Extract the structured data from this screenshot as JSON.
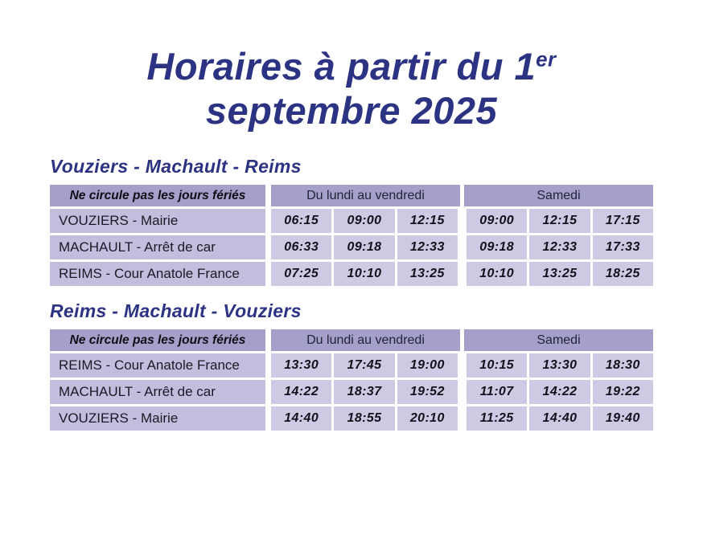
{
  "colors": {
    "accent": "#2c3383",
    "header-bg": "#a5a0ca",
    "station-bg": "#c2bedd",
    "time-bg": "#cdcae4"
  },
  "title": {
    "line1": "Horaires à partir du 1",
    "sup": "er",
    "line2": "septembre 2025"
  },
  "tables": [
    {
      "section_title": "Vouziers - Machault - Reims",
      "header": {
        "note": "Ne circule pas les jours fériés",
        "weekdays": "Du lundi au vendredi",
        "saturday": "Samedi"
      },
      "rows": [
        {
          "station": "VOUZIERS - Mairie",
          "times": [
            "06:15",
            "09:00",
            "12:15",
            "09:00",
            "12:15",
            "17:15"
          ]
        },
        {
          "station": "MACHAULT - Arrêt de car",
          "times": [
            "06:33",
            "09:18",
            "12:33",
            "09:18",
            "12:33",
            "17:33"
          ]
        },
        {
          "station": "REIMS - Cour Anatole France",
          "times": [
            "07:25",
            "10:10",
            "13:25",
            "10:10",
            "13:25",
            "18:25"
          ]
        }
      ]
    },
    {
      "section_title": "Reims - Machault - Vouziers",
      "header": {
        "note": "Ne circule pas les jours fériés",
        "weekdays": "Du lundi au vendredi",
        "saturday": "Samedi"
      },
      "rows": [
        {
          "station": "REIMS - Cour Anatole France",
          "times": [
            "13:30",
            "17:45",
            "19:00",
            "10:15",
            "13:30",
            "18:30"
          ]
        },
        {
          "station": "MACHAULT - Arrêt de car",
          "times": [
            "14:22",
            "18:37",
            "19:52",
            "11:07",
            "14:22",
            "19:22"
          ]
        },
        {
          "station": "VOUZIERS - Mairie",
          "times": [
            "14:40",
            "18:55",
            "20:10",
            "11:25",
            "14:40",
            "19:40"
          ]
        }
      ]
    }
  ]
}
